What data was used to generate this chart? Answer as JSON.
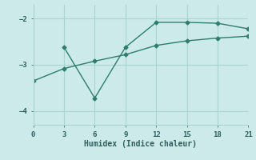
{
  "xlabel": "Humidex (Indice chaleur)",
  "bg_color": "#cceae7",
  "line_color": "#2e7d6e",
  "grid_color": "#aad4ce",
  "line1_x": [
    0,
    3,
    6,
    9,
    12,
    15,
    18,
    21
  ],
  "line1_y": [
    -3.35,
    -3.08,
    -2.92,
    -2.78,
    -2.58,
    -2.48,
    -2.42,
    -2.38
  ],
  "line2_x": [
    3,
    6,
    9,
    12,
    15,
    18,
    21
  ],
  "line2_y": [
    -2.62,
    -3.72,
    -2.62,
    -2.08,
    -2.08,
    -2.1,
    -2.22
  ],
  "xlim": [
    0,
    21
  ],
  "ylim": [
    -4.3,
    -1.7
  ],
  "xticks": [
    0,
    3,
    6,
    9,
    12,
    15,
    18,
    21
  ],
  "yticks": [
    -4,
    -3,
    -2
  ],
  "marker": "D",
  "markersize": 2.5,
  "linewidth": 1.0,
  "tick_fontsize": 6.5,
  "xlabel_fontsize": 7.0
}
